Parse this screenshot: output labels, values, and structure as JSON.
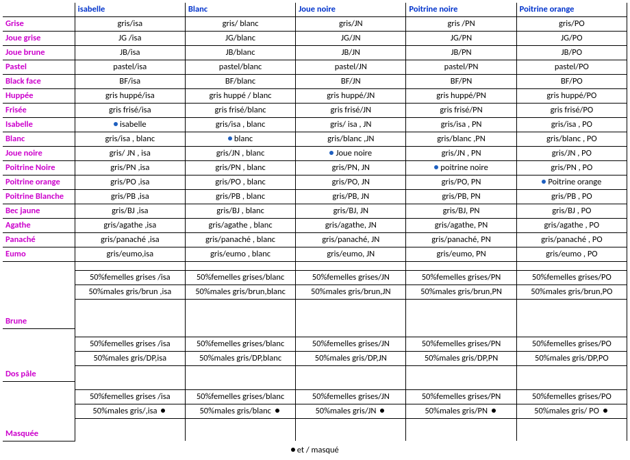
{
  "columns": [
    "isabelle",
    "Blanc",
    "Joue noire",
    "Poitrine noire",
    "Poitrine orange"
  ],
  "rows": [
    {
      "label": "Grise",
      "cells": [
        {
          "t": "gris/isa"
        },
        {
          "t": "gris/ blanc"
        },
        {
          "t": "gris/JN"
        },
        {
          "t": "gris /PN"
        },
        {
          "t": "gris/PO"
        }
      ]
    },
    {
      "label": "Joue grise",
      "cells": [
        {
          "t": "JG /isa"
        },
        {
          "t": "JG/blanc"
        },
        {
          "t": "JG/JN"
        },
        {
          "t": "JG/PN"
        },
        {
          "t": "JG/PO"
        }
      ]
    },
    {
      "label": "Joue brune",
      "cells": [
        {
          "t": "JB/isa"
        },
        {
          "t": "JB/blanc"
        },
        {
          "t": "JB/JN"
        },
        {
          "t": "JB/PN"
        },
        {
          "t": "JB/PO"
        }
      ]
    },
    {
      "label": "Pastel",
      "cells": [
        {
          "t": "pastel/isa"
        },
        {
          "t": "pastel/blanc"
        },
        {
          "t": "pastel/JN"
        },
        {
          "t": "pastel/PN"
        },
        {
          "t": "pastel/PO"
        }
      ]
    },
    {
      "label": "Black face",
      "cells": [
        {
          "t": "BF/isa"
        },
        {
          "t": "BF/blanc"
        },
        {
          "t": "BF/JN"
        },
        {
          "t": "BF/PN"
        },
        {
          "t": "BF/PO"
        }
      ]
    },
    {
      "label": "Huppée",
      "cells": [
        {
          "t": "gris huppé/isa"
        },
        {
          "t": "gris huppé / blanc"
        },
        {
          "t": "gris huppé/JN"
        },
        {
          "t": "gris huppé/PN"
        },
        {
          "t": "gris huppé/PO"
        }
      ]
    },
    {
      "label": "Frisée",
      "cells": [
        {
          "t": "gris frisé/isa"
        },
        {
          "t": "gris frisé/blanc"
        },
        {
          "t": "gris frisé/JN"
        },
        {
          "t": "gris frisé/PN"
        },
        {
          "t": "gris frisé/PO"
        }
      ]
    },
    {
      "label": "Isabelle",
      "cells": [
        {
          "t": "isabelle",
          "dot": "blue"
        },
        {
          "t": "gris/isa , blanc"
        },
        {
          "t": "gris/ isa , JN"
        },
        {
          "t": "gris/isa , PN"
        },
        {
          "t": "gris/isa , PO"
        }
      ]
    },
    {
      "label": "Blanc",
      "cells": [
        {
          "t": "gris/isa , blanc"
        },
        {
          "t": "blanc",
          "dot": "blue"
        },
        {
          "t": "gris/blanc ,JN"
        },
        {
          "t": "gris/blanc ,PN"
        },
        {
          "t": "gris/blanc , PO"
        }
      ]
    },
    {
      "label": "Joue noire",
      "cells": [
        {
          "t": "gris/ JN , isa"
        },
        {
          "t": "gris/JN , blanc"
        },
        {
          "t": "Joue noire",
          "dot": "blue"
        },
        {
          "t": "gris/JN , PN"
        },
        {
          "t": "gris/JN , PO"
        }
      ]
    },
    {
      "label": "Poitrine Noire",
      "cells": [
        {
          "t": "gris/PN ,isa"
        },
        {
          "t": "gris/PN , blanc"
        },
        {
          "t": "gris/PN, JN"
        },
        {
          "t": "poitrine noire",
          "dot": "blue"
        },
        {
          "t": "gris/PN , PO"
        }
      ]
    },
    {
      "label": "Poitrine orange",
      "cells": [
        {
          "t": "gris/PO ,isa"
        },
        {
          "t": "gris/PO , blanc"
        },
        {
          "t": "gris/PO, JN"
        },
        {
          "t": "gris/PO, PN"
        },
        {
          "t": "Poitrine orange",
          "dot": "blue"
        }
      ]
    },
    {
      "label": "Poitrine Blanche",
      "cells": [
        {
          "t": "gris/PB ,isa"
        },
        {
          "t": "gris/PB , blanc"
        },
        {
          "t": "gris/PB, JN"
        },
        {
          "t": "gris/PB, PN"
        },
        {
          "t": "gris/PB , PO"
        }
      ]
    },
    {
      "label": "Bec jaune",
      "cells": [
        {
          "t": "gris/BJ ,isa"
        },
        {
          "t": "gris/BJ , blanc"
        },
        {
          "t": "gris/BJ, JN"
        },
        {
          "t": "gris/BJ, PN"
        },
        {
          "t": "gris/BJ , PO"
        }
      ]
    },
    {
      "label": "Agathe",
      "cells": [
        {
          "t": "gris/agathe ,isa"
        },
        {
          "t": "gris/agathe , blanc"
        },
        {
          "t": "gris/agathe, JN"
        },
        {
          "t": "gris/agathe, PN"
        },
        {
          "t": "gris/agathe , PO"
        }
      ]
    },
    {
      "label": "Panaché",
      "cells": [
        {
          "t": "gris/panaché ,isa"
        },
        {
          "t": "gris/panaché , blanc"
        },
        {
          "t": "gris/panaché, JN"
        },
        {
          "t": "gris/panaché, PN"
        },
        {
          "t": "gris/panaché , PO"
        }
      ]
    },
    {
      "label": "Eumo",
      "cells": [
        {
          "t": "gris/eumo,isa"
        },
        {
          "t": "gris/eumo , blanc"
        },
        {
          "t": "gris/eumo, JN"
        },
        {
          "t": "gris/eumo, PN"
        },
        {
          "t": "gris/eumo , PO"
        }
      ]
    }
  ],
  "groups": [
    {
      "label": "Brune",
      "rows": [
        [
          {
            "t": "50%femelles grises /isa"
          },
          {
            "t": "50%femelles grises/blanc"
          },
          {
            "t": "50%femelles grises/JN"
          },
          {
            "t": "50%femelles grises/PN"
          },
          {
            "t": "50%femelles grises/PO"
          }
        ],
        [
          {
            "t": "50%males gris/brun ,isa"
          },
          {
            "t": "50%males gris/brun,blanc"
          },
          {
            "t": "50%males gris/brun,JN"
          },
          {
            "t": "50%males gris/brun,PN"
          },
          {
            "t": "50%males gris/brun,PO"
          }
        ]
      ],
      "spacer_after": 40
    },
    {
      "label": "Dos pâle",
      "rows": [
        [
          {
            "t": "50%femelles grises /isa"
          },
          {
            "t": "50%femelles grises/blanc"
          },
          {
            "t": "50%femelles grises/JN"
          },
          {
            "t": "50%femelles grises/PN"
          },
          {
            "t": "50%femelles grises/PO"
          }
        ],
        [
          {
            "t": "50%males gris/DP,isa"
          },
          {
            "t": "50%males gris/DP,blanc"
          },
          {
            "t": "50%males gris/DP,JN"
          },
          {
            "t": "50%males gris/DP,PN"
          },
          {
            "t": "50%males gris/DP,PO"
          }
        ]
      ],
      "spacer_after": 20
    },
    {
      "label": "Masquée",
      "rows": [
        [
          {
            "t": "50%femelles grises /isa"
          },
          {
            "t": "50%femelles grises/blanc"
          },
          {
            "t": "50%femelles grises/JN"
          },
          {
            "t": "50%femelles grises/PN"
          },
          {
            "t": "50%femelles grises/PO"
          }
        ],
        [
          {
            "t": "50%males gris/,isa",
            "dotAfter": "black"
          },
          {
            "t": "50%males gris/blanc",
            "dotAfter": "black"
          },
          {
            "t": "50%males gris/JN",
            "dotAfter": "black"
          },
          {
            "t": "50%males gris/PN",
            "dotAfter": "black"
          },
          {
            "t": "50%males gris/ PO",
            "dotAfter": "black"
          }
        ]
      ],
      "spacer_after": 30
    }
  ],
  "footnote": {
    "dot": "black",
    "t": "et  /  masqué"
  }
}
